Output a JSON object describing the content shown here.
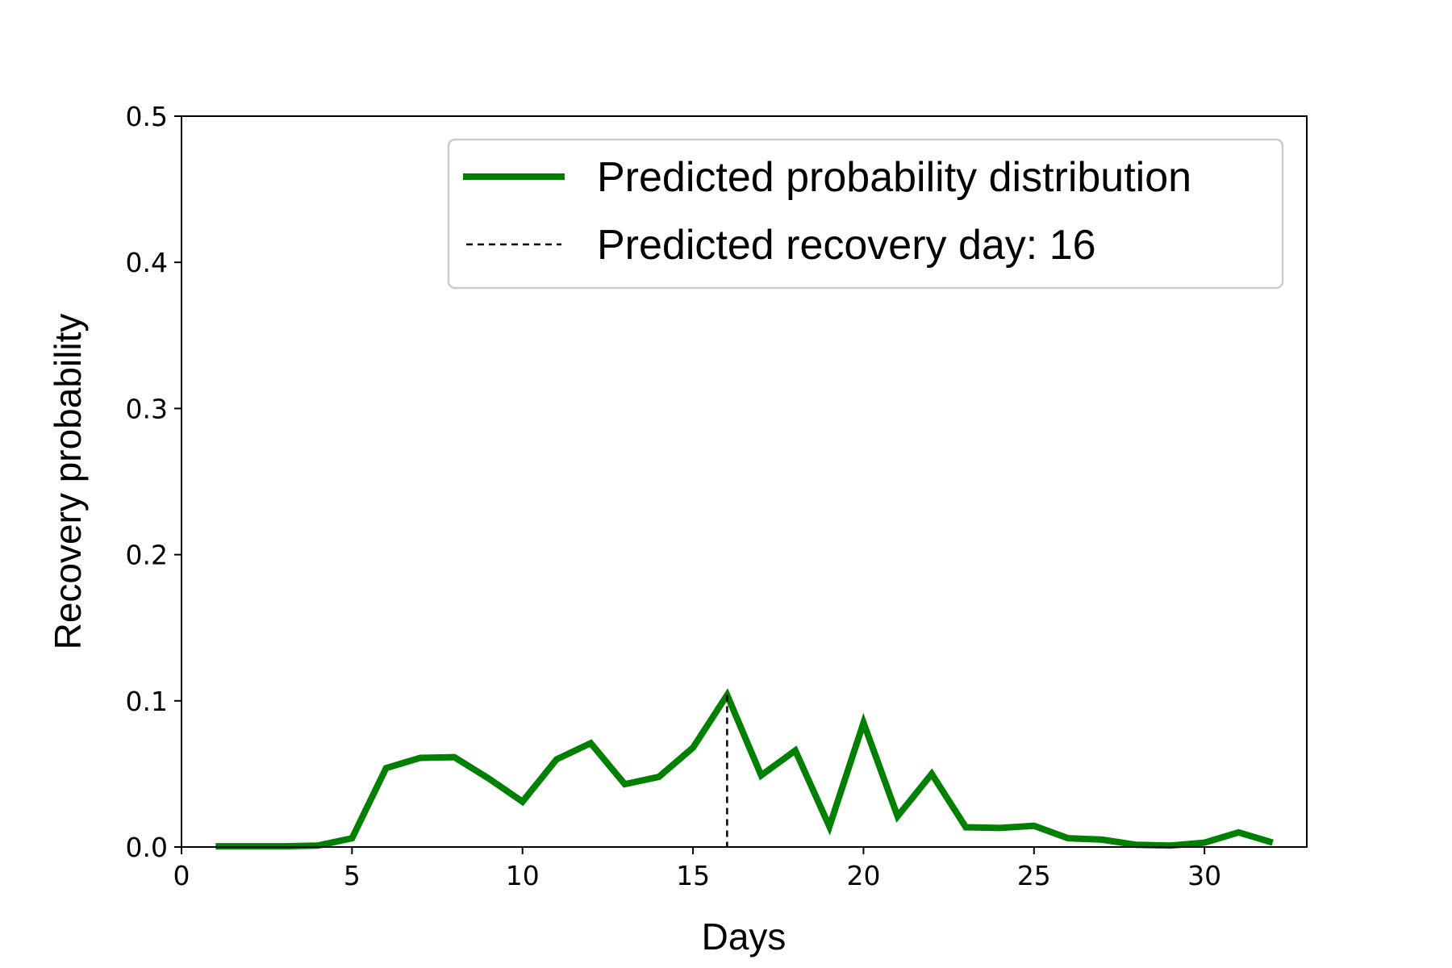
{
  "chart_data": {
    "type": "line",
    "title": "",
    "xlabel": "Days",
    "ylabel": "Recovery probability",
    "xlim": [
      0,
      33
    ],
    "ylim": [
      0,
      0.5
    ],
    "x_ticks": [
      "0",
      "5",
      "10",
      "15",
      "20",
      "25",
      "30"
    ],
    "y_ticks": [
      "0.0",
      "0.1",
      "0.2",
      "0.3",
      "0.4",
      "0.5"
    ],
    "grid": false,
    "legend_position": "top-right",
    "series": [
      {
        "name": "Predicted probability distribution",
        "color": "#008000",
        "style": "solid",
        "x": [
          1,
          2,
          3,
          4,
          5,
          6,
          7,
          8,
          9,
          10,
          11,
          12,
          13,
          14,
          15,
          16,
          17,
          18,
          19,
          20,
          21,
          22,
          23,
          24,
          25,
          26,
          27,
          28,
          29,
          30,
          31,
          32
        ],
        "y": [
          0.0005,
          0.0005,
          0.0005,
          0.001,
          0.006,
          0.054,
          0.061,
          0.0615,
          0.047,
          0.031,
          0.06,
          0.071,
          0.043,
          0.048,
          0.068,
          0.104,
          0.049,
          0.066,
          0.014,
          0.085,
          0.021,
          0.05,
          0.0135,
          0.013,
          0.0145,
          0.006,
          0.005,
          0.0015,
          0.001,
          0.003,
          0.01,
          0.003
        ]
      }
    ],
    "marker_line": {
      "label": "Predicted recovery day: 16",
      "x": 16,
      "y": 0.104,
      "color": "#000000",
      "style": "dashed"
    }
  }
}
